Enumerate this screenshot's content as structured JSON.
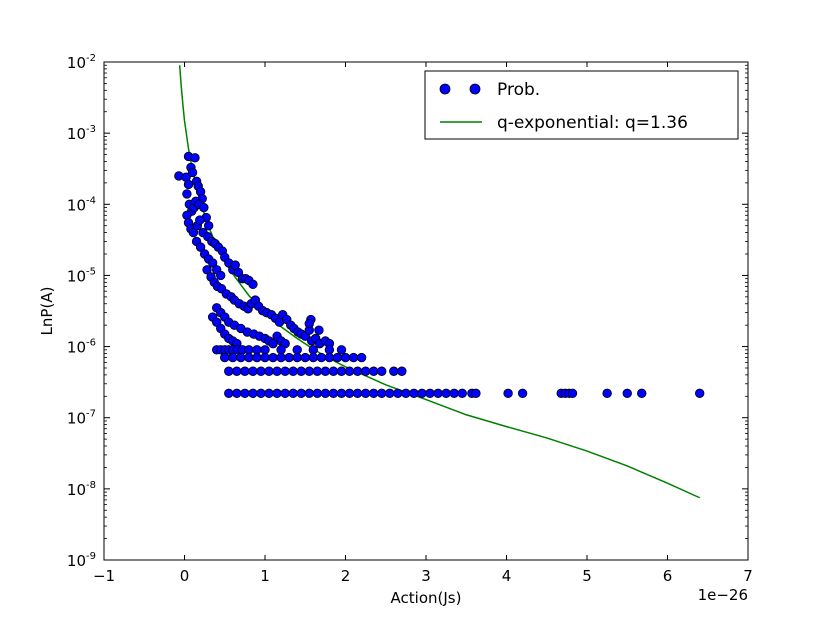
{
  "chart_data": {
    "type": "scatter",
    "xlabel": "Action(Js)",
    "ylabel": "LnP(A)",
    "x_offset_label": "1e−26",
    "xlim": [
      -1,
      7
    ],
    "ylim_log10": [
      -9,
      -2
    ],
    "y_scale": "log",
    "grid": false,
    "legend_position": "top-right",
    "x_ticks": [
      {
        "value": -1,
        "label": "−1"
      },
      {
        "value": 0,
        "label": "0"
      },
      {
        "value": 1,
        "label": "1"
      },
      {
        "value": 2,
        "label": "2"
      },
      {
        "value": 3,
        "label": "3"
      },
      {
        "value": 4,
        "label": "4"
      },
      {
        "value": 5,
        "label": "5"
      },
      {
        "value": 6,
        "label": "6"
      },
      {
        "value": 7,
        "label": "7"
      }
    ],
    "y_ticks": [
      {
        "exp": -9,
        "base": "10",
        "sup": "-9"
      },
      {
        "exp": -8,
        "base": "10",
        "sup": "-8"
      },
      {
        "exp": -7,
        "base": "10",
        "sup": "-7"
      },
      {
        "exp": -6,
        "base": "10",
        "sup": "-6"
      },
      {
        "exp": -5,
        "base": "10",
        "sup": "-5"
      },
      {
        "exp": -4,
        "base": "10",
        "sup": "-4"
      },
      {
        "exp": -3,
        "base": "10",
        "sup": "-3"
      },
      {
        "exp": -2,
        "base": "10",
        "sup": "-2"
      }
    ],
    "series": [
      {
        "name": "Prob.",
        "kind": "scatter",
        "color": "#0000ff",
        "edge_color": "#000000",
        "points": [
          [
            0.05,
            0.00047
          ],
          [
            0.13,
            0.00045
          ],
          [
            -0.07,
            0.00025
          ],
          [
            0.02,
            0.00024
          ],
          [
            0.08,
            0.00033
          ],
          [
            0.1,
            0.00028
          ],
          [
            0.15,
            0.00021
          ],
          [
            0.17,
            0.00018
          ],
          [
            0.2,
            0.00015
          ],
          [
            0.22,
            0.00012
          ],
          [
            0.05,
            0.00019
          ],
          [
            0.03,
            0.00014
          ],
          [
            0.06,
            0.0001
          ],
          [
            0.09,
            8e-05
          ],
          [
            0.12,
            9e-05
          ],
          [
            0.14,
            0.00011
          ],
          [
            0.18,
            0.0001
          ],
          [
            0.24,
            9e-05
          ],
          [
            0.27,
            6.5e-05
          ],
          [
            0.3,
            5e-05
          ],
          [
            0.03,
            7e-05
          ],
          [
            0.05,
            5.5e-05
          ],
          [
            0.08,
            4.5e-05
          ],
          [
            0.11,
            4e-05
          ],
          [
            0.16,
            5e-05
          ],
          [
            0.19,
            6e-05
          ],
          [
            0.23,
            4e-05
          ],
          [
            0.29,
            3.5e-05
          ],
          [
            0.34,
            3e-05
          ],
          [
            0.38,
            2.8e-05
          ],
          [
            0.42,
            2.5e-05
          ],
          [
            0.47,
            2.2e-05
          ],
          [
            0.5,
            1.8e-05
          ],
          [
            0.55,
            1.5e-05
          ],
          [
            0.6,
            1.2e-05
          ],
          [
            0.63,
            1.4e-05
          ],
          [
            0.67,
            1.1e-05
          ],
          [
            0.72,
            9e-06
          ],
          [
            0.76,
            9e-06
          ],
          [
            0.8,
            8.5e-06
          ],
          [
            0.85,
            7.5e-06
          ],
          [
            0.15,
            3e-05
          ],
          [
            0.2,
            2.5e-05
          ],
          [
            0.25,
            2e-05
          ],
          [
            0.3,
            1.7e-05
          ],
          [
            0.35,
            1.5e-05
          ],
          [
            0.4,
            1.2e-05
          ],
          [
            0.45,
            1e-05
          ],
          [
            0.28,
            1.2e-05
          ],
          [
            0.33,
            9.5e-06
          ],
          [
            0.37,
            8e-06
          ],
          [
            0.41,
            7e-06
          ],
          [
            0.46,
            6.5e-06
          ],
          [
            0.52,
            5.5e-06
          ],
          [
            0.58,
            5e-06
          ],
          [
            0.62,
            4.5e-06
          ],
          [
            0.68,
            4e-06
          ],
          [
            0.74,
            3.7e-06
          ],
          [
            0.79,
            3.4e-06
          ],
          [
            0.83,
            4e-06
          ],
          [
            0.88,
            4.5e-06
          ],
          [
            0.92,
            3.7e-06
          ],
          [
            0.97,
            3.2e-06
          ],
          [
            1.02,
            3e-06
          ],
          [
            1.08,
            2.8e-06
          ],
          [
            1.13,
            2.5e-06
          ],
          [
            1.18,
            2.2e-06
          ],
          [
            1.22,
            2.8e-06
          ],
          [
            1.27,
            2.4e-06
          ],
          [
            1.32,
            2e-06
          ],
          [
            1.36,
            1.8e-06
          ],
          [
            1.41,
            1.6e-06
          ],
          [
            1.45,
            1.5e-06
          ],
          [
            1.5,
            1.4e-06
          ],
          [
            1.55,
            1.7e-06
          ],
          [
            1.58,
            1.2e-06
          ],
          [
            1.63,
            1.3e-06
          ],
          [
            1.68,
            1.1e-06
          ],
          [
            1.75,
            1.2e-06
          ],
          [
            1.8,
            1.1e-06
          ],
          [
            1.57,
            2.4e-06
          ],
          [
            1.67,
            1.7e-06
          ],
          [
            1.55,
            2.1e-06
          ],
          [
            0.4,
            3.5e-06
          ],
          [
            0.45,
            3e-06
          ],
          [
            0.5,
            2.6e-06
          ],
          [
            0.55,
            2.2e-06
          ],
          [
            0.62,
            2e-06
          ],
          [
            0.7,
            1.8e-06
          ],
          [
            0.78,
            1.6e-06
          ],
          [
            0.86,
            1.5e-06
          ],
          [
            0.93,
            1.4e-06
          ],
          [
            1.0,
            1.3e-06
          ],
          [
            1.05,
            1.2e-06
          ],
          [
            1.1,
            1.1e-06
          ],
          [
            1.15,
            1.4e-06
          ],
          [
            1.2,
            1.2e-06
          ],
          [
            1.25,
            1.1e-06
          ],
          [
            0.35,
            2.6e-06
          ],
          [
            0.4,
            2.2e-06
          ],
          [
            0.45,
            1.8e-06
          ],
          [
            0.5,
            1.5e-06
          ],
          [
            0.55,
            1.3e-06
          ],
          [
            0.6,
            1.2e-06
          ],
          [
            0.65,
            1.1e-06
          ],
          [
            0.4,
            9e-07
          ],
          [
            0.45,
            9e-07
          ],
          [
            0.5,
            9e-07
          ],
          [
            0.55,
            9e-07
          ],
          [
            0.6,
            9e-07
          ],
          [
            0.66,
            9e-07
          ],
          [
            0.72,
            9e-07
          ],
          [
            0.8,
            9e-07
          ],
          [
            0.9,
            9e-07
          ],
          [
            1.0,
            9e-07
          ],
          [
            1.2,
            9e-07
          ],
          [
            1.4,
            9e-07
          ],
          [
            1.6,
            9e-07
          ],
          [
            1.8,
            9e-07
          ],
          [
            1.95,
            9e-07
          ],
          [
            0.5,
            7e-07
          ],
          [
            0.6,
            7e-07
          ],
          [
            0.7,
            7e-07
          ],
          [
            0.8,
            7e-07
          ],
          [
            0.9,
            7e-07
          ],
          [
            1.0,
            7e-07
          ],
          [
            1.1,
            7e-07
          ],
          [
            1.2,
            7e-07
          ],
          [
            1.3,
            7e-07
          ],
          [
            1.4,
            7e-07
          ],
          [
            1.5,
            7e-07
          ],
          [
            1.6,
            7e-07
          ],
          [
            1.7,
            7e-07
          ],
          [
            1.8,
            7e-07
          ],
          [
            1.9,
            7e-07
          ],
          [
            2.0,
            7e-07
          ],
          [
            2.1,
            7e-07
          ],
          [
            2.2,
            7e-07
          ],
          [
            0.55,
            4.5e-07
          ],
          [
            0.65,
            4.5e-07
          ],
          [
            0.75,
            4.5e-07
          ],
          [
            0.85,
            4.5e-07
          ],
          [
            0.95,
            4.5e-07
          ],
          [
            1.05,
            4.5e-07
          ],
          [
            1.15,
            4.5e-07
          ],
          [
            1.25,
            4.5e-07
          ],
          [
            1.35,
            4.5e-07
          ],
          [
            1.45,
            4.5e-07
          ],
          [
            1.55,
            4.5e-07
          ],
          [
            1.65,
            4.5e-07
          ],
          [
            1.75,
            4.5e-07
          ],
          [
            1.85,
            4.5e-07
          ],
          [
            1.95,
            4.5e-07
          ],
          [
            2.05,
            4.5e-07
          ],
          [
            2.15,
            4.5e-07
          ],
          [
            2.25,
            4.5e-07
          ],
          [
            2.35,
            4.5e-07
          ],
          [
            2.45,
            4.5e-07
          ],
          [
            2.6,
            4.5e-07
          ],
          [
            2.7,
            4.5e-07
          ],
          [
            0.55,
            2.2e-07
          ],
          [
            0.65,
            2.2e-07
          ],
          [
            0.75,
            2.2e-07
          ],
          [
            0.85,
            2.2e-07
          ],
          [
            0.95,
            2.2e-07
          ],
          [
            1.05,
            2.2e-07
          ],
          [
            1.15,
            2.2e-07
          ],
          [
            1.25,
            2.2e-07
          ],
          [
            1.35,
            2.2e-07
          ],
          [
            1.45,
            2.2e-07
          ],
          [
            1.55,
            2.2e-07
          ],
          [
            1.65,
            2.2e-07
          ],
          [
            1.75,
            2.2e-07
          ],
          [
            1.85,
            2.2e-07
          ],
          [
            1.95,
            2.2e-07
          ],
          [
            2.05,
            2.2e-07
          ],
          [
            2.15,
            2.2e-07
          ],
          [
            2.25,
            2.2e-07
          ],
          [
            2.35,
            2.2e-07
          ],
          [
            2.45,
            2.2e-07
          ],
          [
            2.55,
            2.2e-07
          ],
          [
            2.65,
            2.2e-07
          ],
          [
            2.75,
            2.2e-07
          ],
          [
            2.85,
            2.2e-07
          ],
          [
            2.95,
            2.2e-07
          ],
          [
            3.05,
            2.2e-07
          ],
          [
            3.15,
            2.2e-07
          ],
          [
            3.25,
            2.2e-07
          ],
          [
            3.35,
            2.2e-07
          ],
          [
            3.45,
            2.2e-07
          ],
          [
            3.57,
            2.2e-07
          ],
          [
            3.62,
            2.2e-07
          ],
          [
            4.02,
            2.2e-07
          ],
          [
            4.2,
            2.2e-07
          ],
          [
            4.68,
            2.2e-07
          ],
          [
            4.73,
            2.2e-07
          ],
          [
            4.78,
            2.2e-07
          ],
          [
            4.82,
            2.2e-07
          ],
          [
            5.25,
            2.2e-07
          ],
          [
            5.5,
            2.2e-07
          ],
          [
            5.68,
            2.2e-07
          ],
          [
            6.4,
            2.2e-07
          ]
        ]
      },
      {
        "name": "q-exponential: q=1.36",
        "kind": "line",
        "color": "#008000",
        "points": [
          [
            -0.06,
            0.009
          ],
          [
            -0.04,
            0.0045
          ],
          [
            -0.02,
            0.0025
          ],
          [
            0.0,
            0.0015
          ],
          [
            0.05,
            0.0006
          ],
          [
            0.1,
            0.0003
          ],
          [
            0.2,
            0.000105
          ],
          [
            0.3,
            4.8e-05
          ],
          [
            0.4,
            2.6e-05
          ],
          [
            0.5,
            1.6e-05
          ],
          [
            0.6,
            1.05e-05
          ],
          [
            0.8,
            5.2e-06
          ],
          [
            1.0,
            3e-06
          ],
          [
            1.2,
            1.9e-06
          ],
          [
            1.4,
            1.3e-06
          ],
          [
            1.6,
            9.2e-07
          ],
          [
            1.8,
            6.8e-07
          ],
          [
            2.0,
            5.2e-07
          ],
          [
            2.5,
            2.9e-07
          ],
          [
            3.0,
            1.8e-07
          ],
          [
            3.5,
            1.1e-07
          ],
          [
            4.0,
            7.5e-08
          ],
          [
            4.5,
            5.2e-08
          ],
          [
            5.0,
            3.4e-08
          ],
          [
            5.5,
            2.1e-08
          ],
          [
            6.0,
            1.2e-08
          ],
          [
            6.4,
            7.5e-09
          ]
        ]
      }
    ]
  }
}
